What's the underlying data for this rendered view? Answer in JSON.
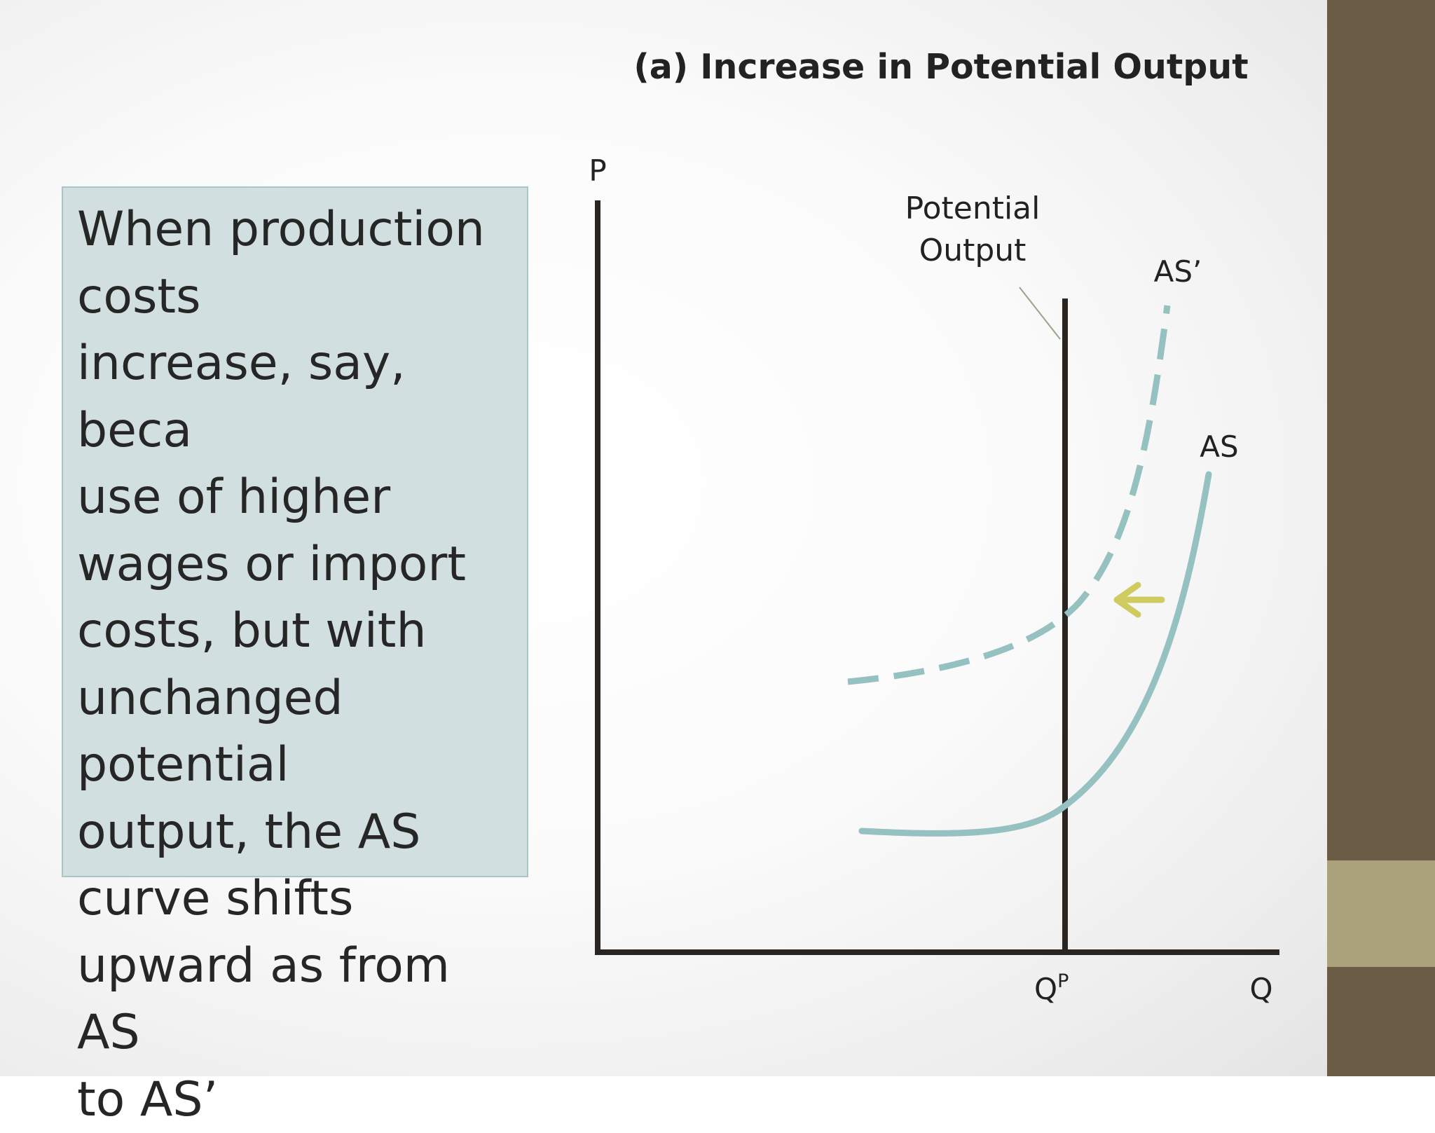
{
  "title": "(a) Increase in Potential Output",
  "text_box": "When production\ncosts\nincrease, say, beca\nuse of higher\nwages or import\ncosts, but with\nunchanged\npotential\noutput, the AS\ncurve shifts\nupward as from AS\nto AS’",
  "axes": {
    "y_label": "P",
    "x_label": "Q"
  },
  "potential_output_label_line1": "Potential",
  "potential_output_label_line2": "Output",
  "qp_label": {
    "base": "Q",
    "superscript": "P"
  },
  "curves": {
    "as_label": "AS",
    "as_prime_label": "AS’"
  },
  "colors": {
    "curve": "#95c1c0",
    "axis": "#2a2520",
    "arrow": "#d0cb5e",
    "text_box_fill": "#d1dfe1",
    "text_box_border": "#a7c6c6",
    "side_bar": "#6b5d45",
    "side_accent": "#a9a27a"
  },
  "icons": {
    "shift_arrow": "left-arrow-icon"
  }
}
